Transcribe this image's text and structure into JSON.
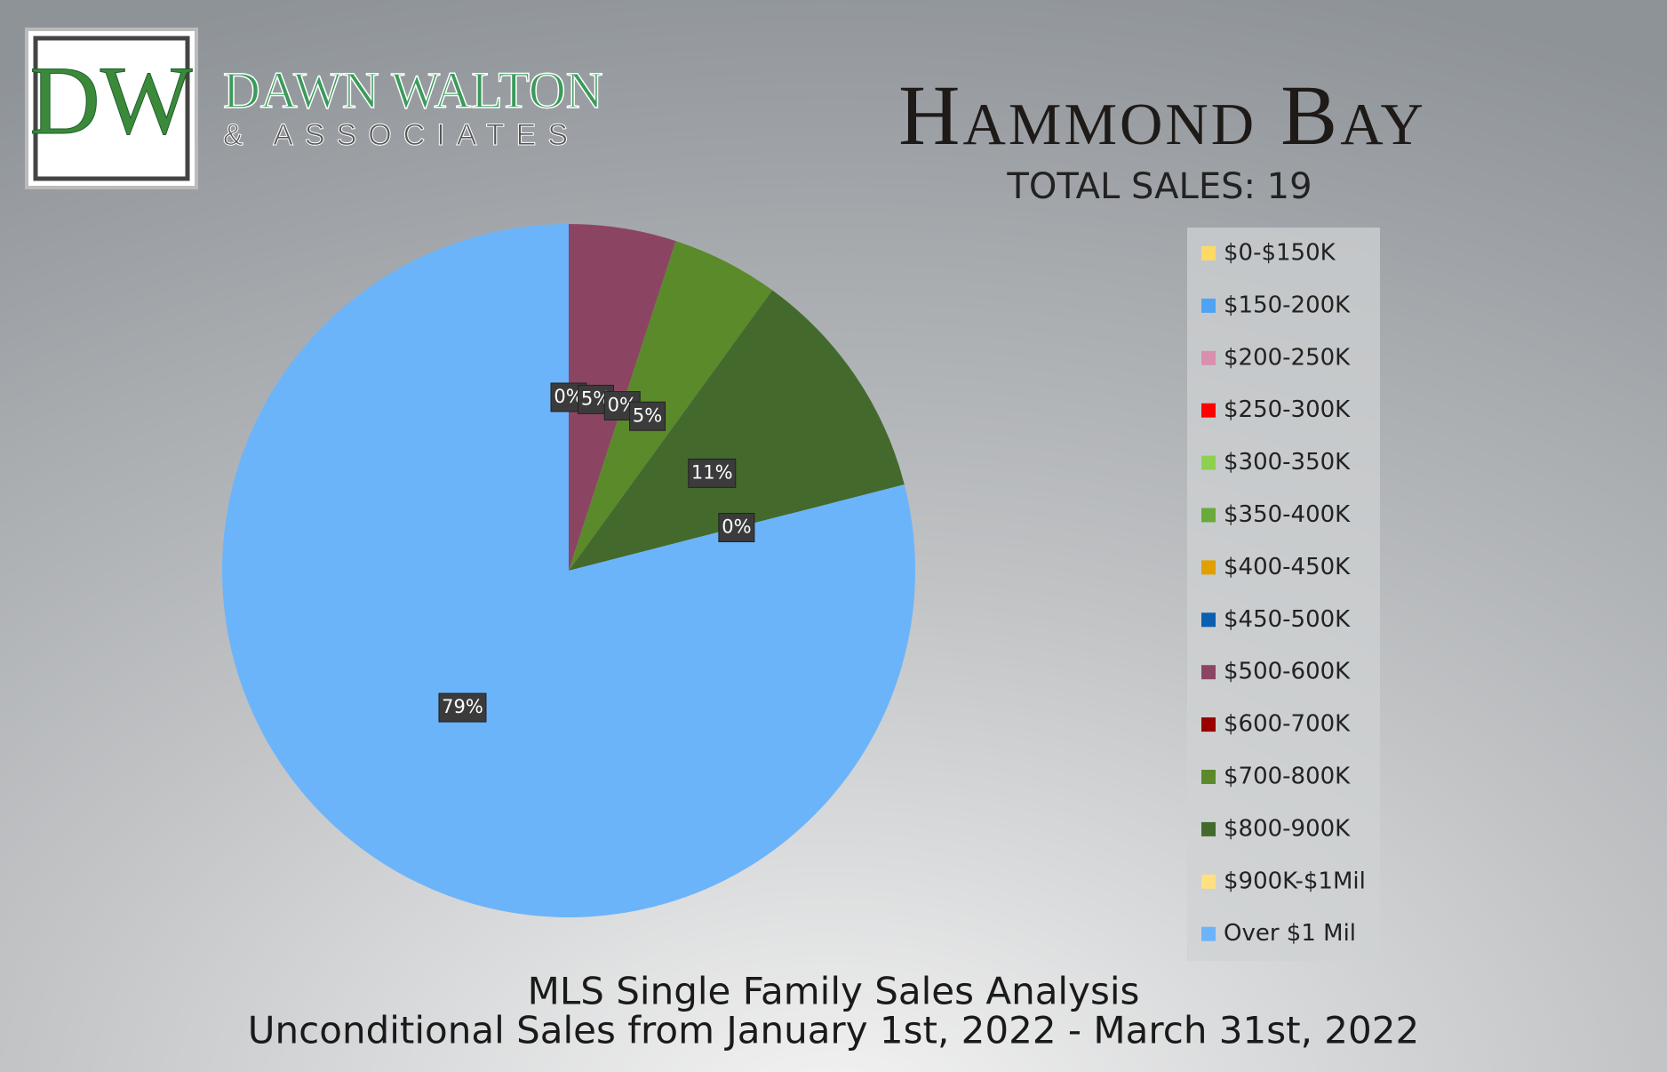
{
  "logo": {
    "monogram": "DW",
    "name": "DAWN WALTON",
    "sub": "& ASSOCIATES"
  },
  "chart_data": {
    "type": "pie",
    "title": "Hammond Bay",
    "subtitle": "TOTAL SALES: 19",
    "footer": [
      "MLS Single Family Sales Analysis",
      "Unconditional Sales from January 1st, 2022 - March 31st, 2022"
    ],
    "categories": [
      "$0-$150K",
      "$150-200K",
      "$200-250K",
      "$250-300K",
      "$300-350K",
      "$350-400K",
      "$400-450K",
      "$450-500K",
      "$500-600K",
      "$600-700K",
      "$700-800K",
      "$800-900K",
      "$900K-$1Mil",
      "Over $1 Mil"
    ],
    "values": [
      0,
      0,
      0,
      0,
      0,
      0,
      0,
      0,
      5,
      0,
      5,
      11,
      0,
      79
    ],
    "value_labels": [
      "0%",
      "0%",
      "0%",
      "0%",
      "0%",
      "0%",
      "0%",
      "0%",
      "5%",
      "0%",
      "5%",
      "11%",
      "0%",
      "79%"
    ],
    "colors": [
      "#ffd966",
      "#4ea3f5",
      "#d98fb0",
      "#ff0000",
      "#8fd14f",
      "#6aaa3a",
      "#e0a000",
      "#0b5fb0",
      "#8b4563",
      "#9b0000",
      "#5a8a2a",
      "#436a2c",
      "#ffe082",
      "#6cb4fa"
    ],
    "legend": "right"
  }
}
